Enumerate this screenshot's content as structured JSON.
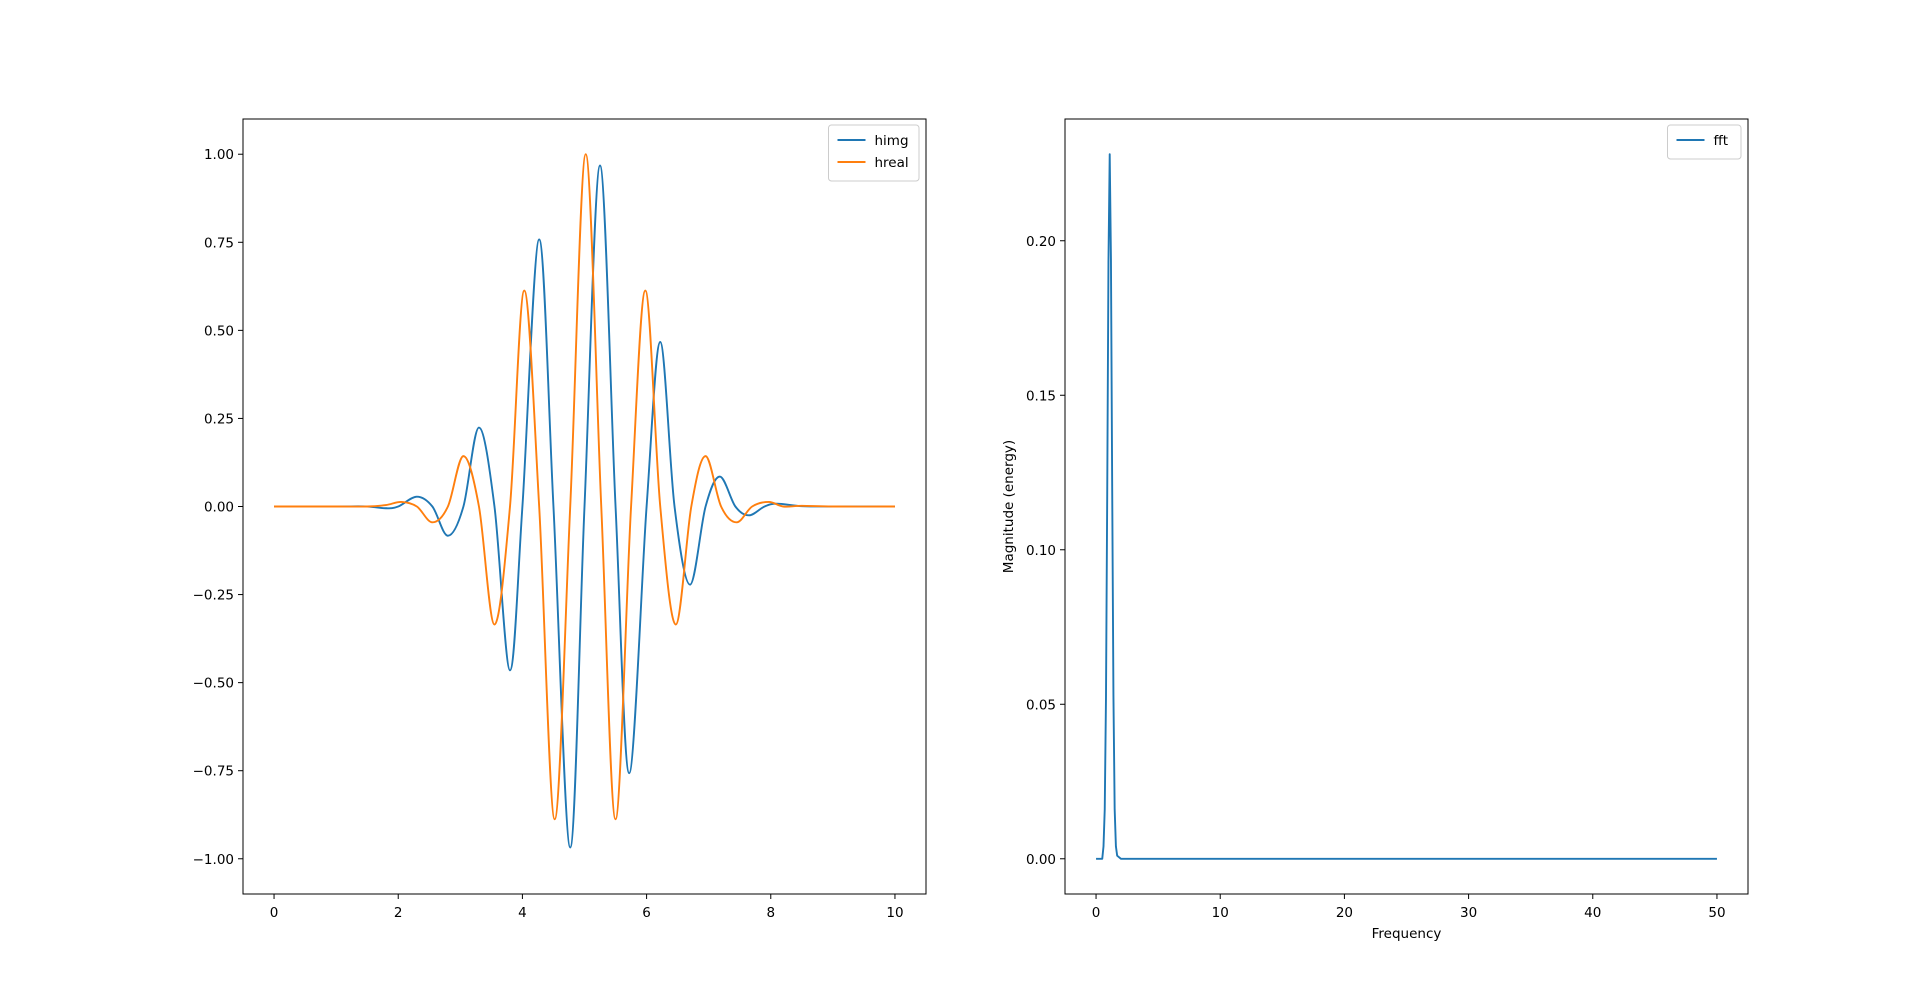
{
  "chart_data": [
    {
      "type": "line",
      "title": "",
      "xlabel": "",
      "ylabel": "",
      "xlim": [
        -0.5,
        10.5
      ],
      "ylim": [
        -1.1,
        1.1
      ],
      "xticks": [
        0,
        2,
        4,
        6,
        8,
        10
      ],
      "xtick_labels": [
        "0",
        "2",
        "4",
        "6",
        "8",
        "10"
      ],
      "yticks": [
        -1.0,
        -0.75,
        -0.5,
        -0.25,
        0.0,
        0.25,
        0.5,
        0.75,
        1.0
      ],
      "ytick_labels": [
        "−1.00",
        "−0.75",
        "−0.50",
        "−0.25",
        "0.00",
        "0.25",
        "0.50",
        "0.75",
        "1.00"
      ],
      "legend_position": "top-right",
      "grid": false,
      "series": [
        {
          "name": "himg",
          "color": "#1f77b4",
          "x": [
            0,
            1,
            1.5,
            1.8,
            2.0,
            2.3,
            2.55,
            2.8,
            3.05,
            3.3,
            3.55,
            3.8,
            4.0,
            4.27,
            4.5,
            4.77,
            5.0,
            5.25,
            5.5,
            5.72,
            6.0,
            6.22,
            6.45,
            6.7,
            6.95,
            7.18,
            7.43,
            7.65,
            7.9,
            8.1,
            8.5,
            9,
            10
          ],
          "y": [
            0,
            0,
            0.0,
            -0.005,
            0,
            0.028,
            0,
            -0.083,
            0,
            0.224,
            0,
            -0.465,
            0,
            0.758,
            0,
            -0.968,
            0,
            0.968,
            0,
            -0.757,
            0,
            0.467,
            0,
            -0.222,
            0,
            0.085,
            0,
            -0.025,
            0,
            0.008,
            0.001,
            0,
            0
          ]
        },
        {
          "name": "hreal",
          "color": "#ff7f0e",
          "x": [
            0,
            1,
            1.5,
            1.8,
            2.05,
            2.3,
            2.55,
            2.8,
            3.05,
            3.3,
            3.55,
            3.8,
            4.03,
            4.27,
            4.52,
            4.77,
            5.02,
            5.27,
            5.5,
            5.75,
            5.98,
            6.22,
            6.47,
            6.72,
            6.95,
            7.2,
            7.45,
            7.7,
            7.97,
            8.2,
            8.5,
            9,
            10
          ],
          "y": [
            0,
            0,
            0,
            0.004,
            0.013,
            0,
            -0.045,
            0,
            0.143,
            0,
            -0.335,
            0,
            0.613,
            0,
            -0.888,
            0,
            1.0,
            0,
            -0.888,
            0,
            0.613,
            0,
            -0.335,
            0,
            0.143,
            0,
            -0.045,
            0,
            0.013,
            0,
            0.002,
            0,
            0
          ]
        }
      ]
    },
    {
      "type": "line",
      "title": "",
      "xlabel": "Frequency",
      "ylabel": "Magnitude (energy)",
      "xlim": [
        -2.5,
        52.5
      ],
      "ylim": [
        -0.0114,
        0.2394
      ],
      "xticks": [
        0,
        10,
        20,
        30,
        40,
        50
      ],
      "xtick_labels": [
        "0",
        "10",
        "20",
        "30",
        "40",
        "50"
      ],
      "yticks": [
        0.0,
        0.05,
        0.1,
        0.15,
        0.2
      ],
      "ytick_labels": [
        "0.00",
        "0.05",
        "0.10",
        "0.15",
        "0.20"
      ],
      "legend_position": "top-right",
      "grid": false,
      "series": [
        {
          "name": "fft",
          "color": "#1f77b4",
          "x": [
            0,
            0.5,
            0.6,
            0.7,
            0.8,
            0.9,
            1.0,
            1.1,
            1.2,
            1.3,
            1.4,
            1.5,
            1.6,
            1.7,
            2.0,
            50
          ],
          "y": [
            0,
            0,
            0.004,
            0.016,
            0.052,
            0.118,
            0.193,
            0.228,
            0.194,
            0.12,
            0.053,
            0.016,
            0.004,
            0.001,
            0,
            0
          ]
        }
      ]
    }
  ]
}
